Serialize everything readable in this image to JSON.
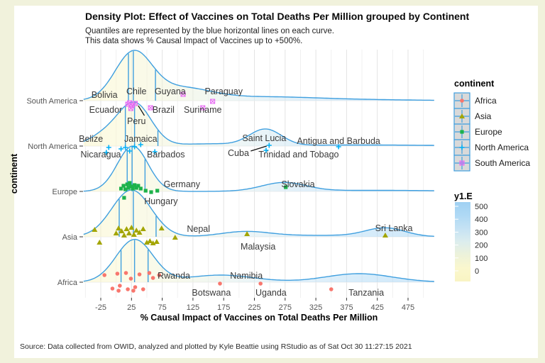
{
  "title": "Density Plot: Effect of Vaccines on Total Deaths Per Million grouped by Continent",
  "subtitle_line1": "Quantiles are represented by the blue horizontal lines on each curve.",
  "subtitle_line2": "This data shows % Causal Impact of Vaccines up to +500%.",
  "caption": "Source: Data collected from OWID, analyzed and plotted by Kyle Beattie using RStudio as of Sat Oct 30 11:27:15 2021",
  "x_axis": {
    "title": "% Causal Impact of Vaccines on Total Deaths Per Million",
    "major_ticks": [
      -25,
      25,
      75,
      125,
      175,
      225,
      275,
      325,
      375,
      425,
      475
    ],
    "minor_ticks": [
      -50,
      0,
      50,
      100,
      150,
      200,
      250,
      300,
      350,
      400,
      450,
      500
    ]
  },
  "y_axis": {
    "title": "continent",
    "categories": [
      "South America",
      "North America",
      "Europe",
      "Asia",
      "Africa"
    ]
  },
  "legend_continent": {
    "title": "continent",
    "items": [
      {
        "label": "Africa",
        "color": "#F8766D",
        "shape": "circle"
      },
      {
        "label": "Asia",
        "color": "#A3A500",
        "shape": "triangle"
      },
      {
        "label": "Europe",
        "color": "#1cb24b",
        "shape": "square"
      },
      {
        "label": "North America",
        "color": "#00B0F6",
        "shape": "plus"
      },
      {
        "label": "South America",
        "color": "#E76BF3",
        "shape": "boxed_x"
      }
    ]
  },
  "legend_gradient": {
    "title": "y1.E",
    "ticks": [
      500,
      400,
      300,
      200,
      100,
      0
    ]
  },
  "style": {
    "curve_color": "#3f9fdf",
    "label_color": "#3a3a3a",
    "axis_text_color": "#555555",
    "leader_color": "#111111",
    "gradient_stops": [
      [
        0.0,
        "#f9f4c3"
      ],
      [
        0.1,
        "#faf7cd"
      ],
      [
        0.28,
        "#edf2da"
      ],
      [
        0.45,
        "#dcedee"
      ],
      [
        0.62,
        "#c5e2f4"
      ],
      [
        0.8,
        "#afd9f5"
      ],
      [
        1.0,
        "#a0d1f3"
      ]
    ]
  },
  "chart_data": {
    "type": "ridgeline-density",
    "x_domain": [
      -53,
      518
    ],
    "x_ticks": [
      -25,
      25,
      75,
      125,
      175,
      225,
      275,
      325,
      375,
      425,
      475
    ],
    "xlabel": "% Causal Impact of Vaccines on Total Deaths Per Million",
    "ylabel": "continent",
    "fill_legend": {
      "name": "y1.E",
      "range": [
        0,
        500
      ]
    },
    "rows": [
      {
        "continent": "South America",
        "color": "#E76BF3",
        "shape": "boxed_x",
        "bumps": [
          [
            28,
            30,
            66
          ],
          [
            105,
            48,
            17
          ],
          [
            230,
            80,
            4
          ],
          [
            330,
            120,
            2
          ]
        ],
        "quantile_lines": [
          20,
          28,
          64
        ],
        "points": [
          [
            19,
            5
          ],
          [
            26,
            7
          ],
          [
            22,
            3
          ],
          [
            31,
            4
          ],
          [
            24,
            11
          ],
          [
            56,
            10
          ],
          [
            109,
            -9
          ],
          [
            141,
            10
          ],
          [
            157,
            1
          ]
        ],
        "country_labels": [
          {
            "text": "Bolivia",
            "x": -19,
            "dy": -8
          },
          {
            "text": "Chile",
            "x": 33,
            "dy": -13
          },
          {
            "text": "Guyana",
            "x": 88,
            "dy": -13
          },
          {
            "text": "Paraguay",
            "x": 175,
            "dy": -13
          },
          {
            "text": "Ecuador",
            "x": -17,
            "dy": 13
          },
          {
            "text": "Brazil",
            "x": 77,
            "dy": 13
          },
          {
            "text": "Suriname",
            "x": 141,
            "dy": 13
          },
          {
            "text": "Peru",
            "x": 33,
            "dy": 29
          }
        ],
        "leaders": [
          [
            [
              36,
              7
            ],
            [
              46,
              21
            ]
          ]
        ]
      },
      {
        "continent": "North America",
        "color": "#00B0F6",
        "shape": "plus",
        "bumps": [
          [
            30,
            27,
            60
          ],
          [
            -20,
            25,
            14
          ],
          [
            243,
            26,
            23
          ],
          [
            150,
            50,
            3
          ],
          [
            400,
            120,
            1.5
          ]
        ],
        "quantile_lines": [
          15,
          30,
          68
        ],
        "points": [
          [
            -12,
            2
          ],
          [
            -16,
            9
          ],
          [
            8,
            4
          ],
          [
            15,
            2
          ],
          [
            22,
            7
          ],
          [
            30,
            1
          ],
          [
            40,
            -2
          ],
          [
            63,
            8
          ],
          [
            244,
            6
          ],
          [
            249,
            -1
          ],
          [
            362,
            1
          ]
        ],
        "country_labels": [
          {
            "text": "Belize",
            "x": -41,
            "dy": -10
          },
          {
            "text": "Jamaica",
            "x": 40,
            "dy": -10
          },
          {
            "text": "Saint Lucia",
            "x": 241,
            "dy": -11
          },
          {
            "text": "Antigua and Barbuda",
            "x": 362,
            "dy": -7
          },
          {
            "text": "Nicaragua",
            "x": -25,
            "dy": 12
          },
          {
            "text": "Barbados",
            "x": 81,
            "dy": 12
          },
          {
            "text": "Cuba",
            "x": 199,
            "dy": 10
          },
          {
            "text": "Trinidad and Tobago",
            "x": 297,
            "dy": 12
          }
        ],
        "leaders": [
          [
            [
              219,
              7
            ],
            [
              245,
              0
            ]
          ]
        ]
      },
      {
        "continent": "Europe",
        "color": "#1cb24b",
        "shape": "square",
        "bumps": [
          [
            27,
            25,
            64
          ],
          [
            273,
            36,
            12
          ],
          [
            420,
            120,
            1.5
          ]
        ],
        "quantile_lines": [
          18,
          26,
          47
        ],
        "points": [
          [
            8,
            -4
          ],
          [
            12,
            -8
          ],
          [
            15,
            -3
          ],
          [
            18,
            -10
          ],
          [
            20,
            -5
          ],
          [
            22,
            -12
          ],
          [
            24,
            -7
          ],
          [
            27,
            -4
          ],
          [
            30,
            -9
          ],
          [
            33,
            -5
          ],
          [
            36,
            -8
          ],
          [
            40,
            -4
          ],
          [
            48,
            -1
          ],
          [
            57,
            1
          ],
          [
            67,
            -1
          ],
          [
            13,
            9
          ],
          [
            276,
            -6
          ]
        ],
        "country_labels": [
          {
            "text": "Germany",
            "x": 107,
            "dy": -10
          },
          {
            "text": "Slovakia",
            "x": 296,
            "dy": -10
          },
          {
            "text": "Hungary",
            "x": 73,
            "dy": 14
          }
        ],
        "leaders": []
      },
      {
        "continent": "Asia",
        "color": "#A3A500",
        "shape": "triangle",
        "bumps": [
          [
            25,
            32,
            66
          ],
          [
            210,
            40,
            7
          ],
          [
            438,
            32,
            12
          ],
          [
            330,
            80,
            2
          ]
        ],
        "quantile_lines": [
          5,
          28,
          65
        ],
        "points": [
          [
            -35,
            -10
          ],
          [
            -27,
            8
          ],
          [
            0,
            -5
          ],
          [
            4,
            -12
          ],
          [
            9,
            -8
          ],
          [
            13,
            -2
          ],
          [
            17,
            -11
          ],
          [
            21,
            -5
          ],
          [
            25,
            -13
          ],
          [
            29,
            -3
          ],
          [
            33,
            -9
          ],
          [
            38,
            -6
          ],
          [
            44,
            -11
          ],
          [
            50,
            8
          ],
          [
            55,
            6
          ],
          [
            60,
            9
          ],
          [
            66,
            7
          ],
          [
            74,
            -12
          ],
          [
            96,
            1
          ],
          [
            213,
            -4
          ],
          [
            438,
            -2
          ]
        ],
        "country_labels": [
          {
            "text": "Nepal",
            "x": 134,
            "dy": -11
          },
          {
            "text": "Sri Lanka",
            "x": 452,
            "dy": -12
          },
          {
            "text": "Malaysia",
            "x": 231,
            "dy": 14
          }
        ],
        "leaders": []
      },
      {
        "continent": "Africa",
        "color": "#F8766D",
        "shape": "circle",
        "bumps": [
          [
            30,
            30,
            60
          ],
          [
            170,
            55,
            10
          ],
          [
            395,
            55,
            12
          ]
        ],
        "quantile_lines": [
          8,
          30,
          52
        ],
        "points": [
          [
            -19,
            -10
          ],
          [
            -6,
            9
          ],
          [
            2,
            -12
          ],
          [
            6,
            5
          ],
          [
            4,
            12
          ],
          [
            16,
            -13
          ],
          [
            19,
            10
          ],
          [
            24,
            -5
          ],
          [
            28,
            12
          ],
          [
            31,
            7
          ],
          [
            38,
            -11
          ],
          [
            44,
            10
          ],
          [
            54,
            -13
          ],
          [
            60,
            -6
          ],
          [
            70,
            -10
          ],
          [
            169,
            2
          ],
          [
            235,
            2
          ],
          [
            350,
            10
          ]
        ],
        "country_labels": [
          {
            "text": "Rwanda",
            "x": 94,
            "dy": -9
          },
          {
            "text": "Namibia",
            "x": 212,
            "dy": -9
          },
          {
            "text": "Botswana",
            "x": 155,
            "dy": 15
          },
          {
            "text": "Uganda",
            "x": 252,
            "dy": 15
          },
          {
            "text": "Tanzania",
            "x": 407,
            "dy": 15
          }
        ],
        "leaders": []
      }
    ]
  }
}
